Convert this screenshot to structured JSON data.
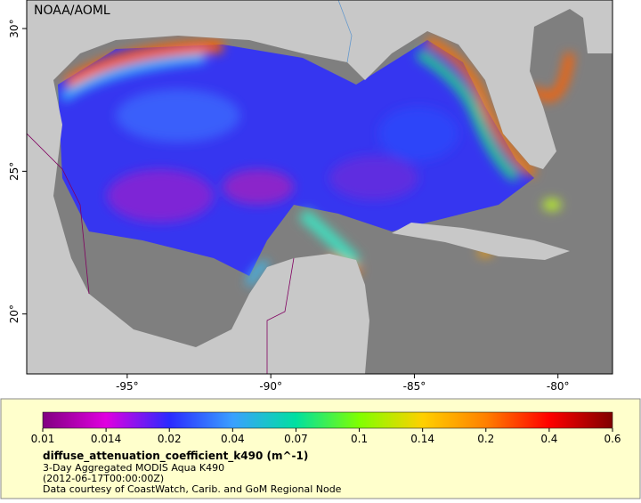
{
  "map": {
    "label": "NOAA/AOML",
    "lon_range": [
      -98.5,
      -78.1
    ],
    "lat_range": [
      17.9,
      31.0
    ],
    "lon_ticks": [
      {
        "value": -95,
        "label": "-95°"
      },
      {
        "value": -90,
        "label": "-90°"
      },
      {
        "value": -85,
        "label": "-85°"
      },
      {
        "value": -80,
        "label": "-80°"
      }
    ],
    "lat_ticks": [
      {
        "value": 30,
        "label": "30°"
      },
      {
        "value": 25,
        "label": "25°"
      },
      {
        "value": 20,
        "label": "20°"
      }
    ]
  },
  "legend": {
    "ticks": [
      0.01,
      0.014,
      0.02,
      0.04,
      0.07,
      0.1,
      0.14,
      0.2,
      0.4,
      0.6
    ],
    "colors": [
      "#800080",
      "#e000e0",
      "#2a2aff",
      "#3aa0ff",
      "#00e0a0",
      "#80ff00",
      "#ffd000",
      "#ff8000",
      "#ff0000",
      "#800000"
    ],
    "title": "diffuse_attenuation_coefficient_k490 (m^-1)",
    "lines": [
      "3-Day Aggregated MODIS Aqua K490",
      "(2012-06-17T00:00:00Z)",
      "Data courtesy of CoastWatch, Carib. and GoM Regional Node"
    ]
  }
}
